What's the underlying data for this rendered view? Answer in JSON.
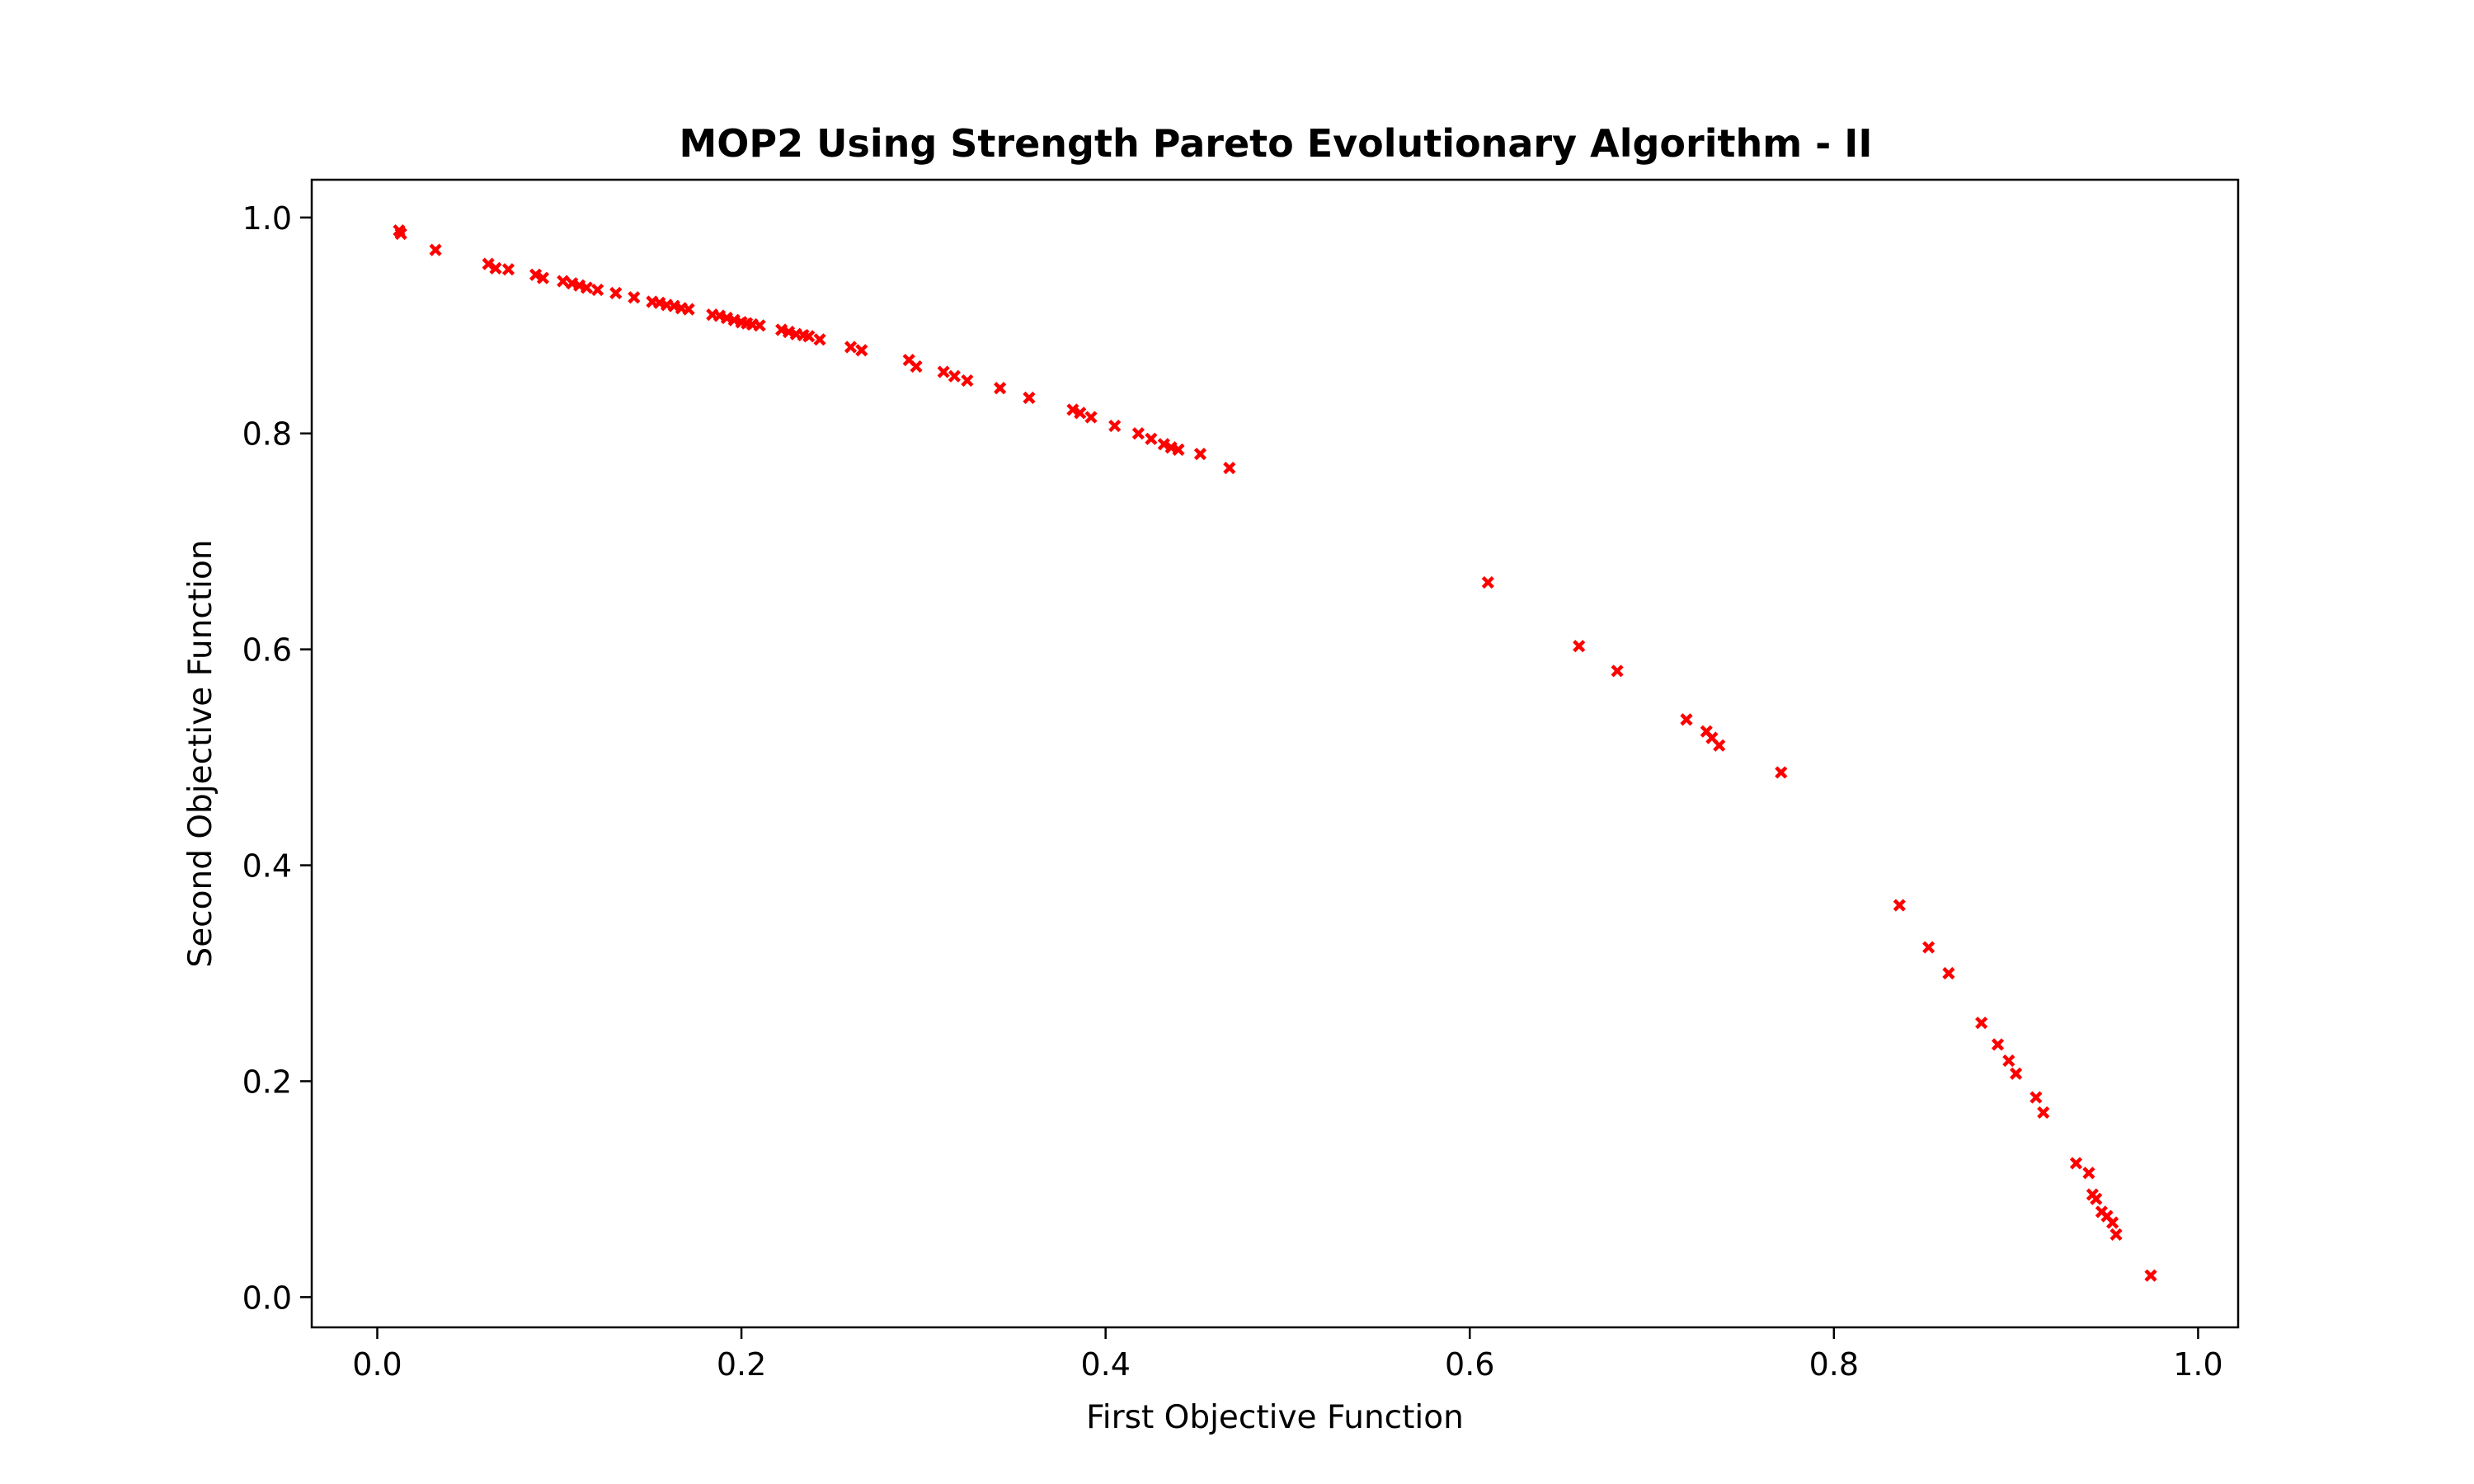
{
  "chart_data": {
    "type": "scatter",
    "title": "MOP2 Using Strength Pareto Evolutionary Algorithm - II",
    "xlabel": "First Objective Function",
    "ylabel": "Second Objective Function",
    "xlim": [
      -0.036,
      1.022
    ],
    "ylim": [
      -0.028,
      1.035
    ],
    "xticks": [
      0.0,
      0.2,
      0.4,
      0.6,
      0.8,
      1.0
    ],
    "xtick_labels": [
      "0.0",
      "0.2",
      "0.4",
      "0.6",
      "0.8",
      "1.0"
    ],
    "yticks": [
      0.0,
      0.2,
      0.4,
      0.6,
      0.8,
      1.0
    ],
    "ytick_labels": [
      "0.0",
      "0.2",
      "0.4",
      "0.6",
      "0.8",
      "1.0"
    ],
    "grid": false,
    "marker": "x",
    "marker_color": "#ff0000",
    "series": [
      {
        "x": [
          0.012,
          0.013,
          0.032,
          0.061,
          0.065,
          0.072,
          0.087,
          0.091,
          0.102,
          0.107,
          0.111,
          0.115,
          0.121,
          0.131,
          0.141,
          0.151,
          0.155,
          0.159,
          0.163,
          0.167,
          0.171,
          0.184,
          0.188,
          0.192,
          0.196,
          0.2,
          0.203,
          0.206,
          0.21,
          0.222,
          0.226,
          0.23,
          0.234,
          0.237,
          0.243,
          0.26,
          0.266,
          0.292,
          0.296,
          0.311,
          0.317,
          0.324,
          0.342,
          0.358,
          0.382,
          0.386,
          0.392,
          0.405,
          0.418,
          0.425,
          0.432,
          0.436,
          0.44,
          0.452,
          0.468,
          0.61,
          0.66,
          0.681,
          0.719,
          0.73,
          0.733,
          0.737,
          0.771,
          0.836,
          0.852,
          0.863,
          0.881,
          0.89,
          0.896,
          0.9,
          0.911,
          0.915,
          0.933,
          0.94,
          0.942,
          0.944,
          0.947,
          0.95,
          0.953,
          0.955,
          0.974
        ],
        "y": [
          0.988,
          0.985,
          0.97,
          0.957,
          0.953,
          0.952,
          0.947,
          0.944,
          0.941,
          0.939,
          0.937,
          0.935,
          0.933,
          0.93,
          0.926,
          0.922,
          0.921,
          0.919,
          0.918,
          0.916,
          0.915,
          0.91,
          0.909,
          0.907,
          0.905,
          0.903,
          0.902,
          0.901,
          0.9,
          0.896,
          0.894,
          0.892,
          0.891,
          0.89,
          0.887,
          0.88,
          0.877,
          0.868,
          0.862,
          0.857,
          0.853,
          0.849,
          0.842,
          0.833,
          0.822,
          0.819,
          0.815,
          0.807,
          0.8,
          0.795,
          0.79,
          0.787,
          0.785,
          0.781,
          0.768,
          0.662,
          0.603,
          0.58,
          0.535,
          0.524,
          0.518,
          0.511,
          0.486,
          0.363,
          0.324,
          0.3,
          0.254,
          0.234,
          0.219,
          0.207,
          0.185,
          0.171,
          0.124,
          0.115,
          0.095,
          0.091,
          0.079,
          0.075,
          0.069,
          0.058,
          0.02
        ]
      }
    ]
  }
}
